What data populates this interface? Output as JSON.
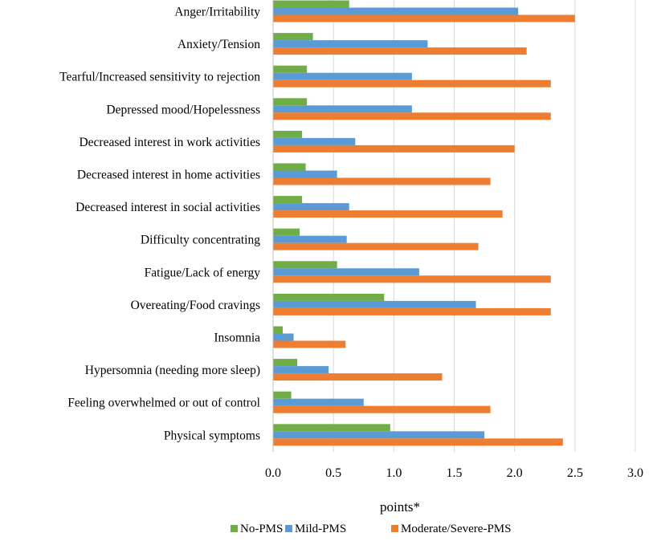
{
  "chart_data": {
    "type": "bar",
    "orientation": "horizontal",
    "categories": [
      "Anger/Irritability",
      "Anxiety/Tension",
      "Tearful/Increased sensitivity to rejection",
      "Depressed mood/Hopelessness",
      "Decreased interest in work activities",
      "Decreased interest in home activities",
      "Decreased interest in social activities",
      "Difficulty concentrating",
      "Fatigue/Lack of energy",
      "Overeating/Food cravings",
      "Insomnia",
      "Hypersomnia (needing more sleep)",
      "Feeling overwhelmed or out of control",
      "Physical symptoms"
    ],
    "series": [
      {
        "name": "No-PMS",
        "color": "#70ad47",
        "values": [
          0.63,
          0.33,
          0.28,
          0.28,
          0.24,
          0.27,
          0.24,
          0.22,
          0.53,
          0.92,
          0.08,
          0.2,
          0.15,
          0.97
        ]
      },
      {
        "name": "Mild-PMS",
        "color": "#5b9bd5",
        "values": [
          2.03,
          1.28,
          1.15,
          1.15,
          0.68,
          0.53,
          0.63,
          0.61,
          1.21,
          1.68,
          0.17,
          0.46,
          0.75,
          1.75
        ]
      },
      {
        "name": "Moderate/Severe-PMS",
        "color": "#ed7d31",
        "values": [
          2.5,
          2.1,
          2.3,
          2.3,
          2.0,
          1.8,
          1.9,
          1.7,
          2.3,
          2.3,
          0.6,
          1.4,
          1.8,
          2.4
        ]
      }
    ],
    "xlabel": "points*",
    "ylabel": "",
    "xlim": [
      0,
      3.0
    ],
    "xticks": [
      "0.0",
      "0.5",
      "1.0",
      "1.5",
      "2.0",
      "2.5",
      "3.0"
    ],
    "xtick_values": [
      0,
      0.5,
      1.0,
      1.5,
      2.0,
      2.5,
      3.0
    ],
    "grid": "vertical",
    "gridline_color": "#d9d9d9",
    "legend_position": "bottom"
  }
}
